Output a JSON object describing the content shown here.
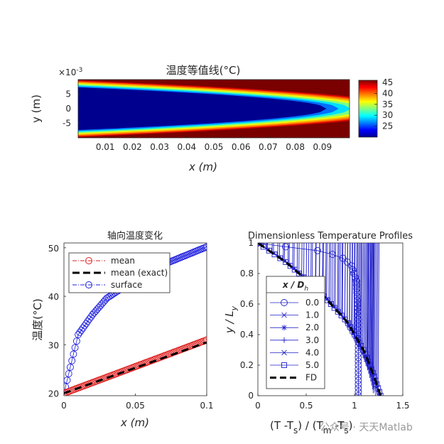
{
  "chart_data": [
    {
      "type": "heatmap",
      "title": "温度等值线(°C)",
      "xlabel": "x (m)",
      "ylabel": "y (m)",
      "y_exponent": "×10",
      "y_exponent_power": "-3",
      "xlim": [
        0,
        0.1
      ],
      "ylim": [
        -10,
        10
      ],
      "x_ticks": [
        "0.01",
        "0.02",
        "0.03",
        "0.04",
        "0.05",
        "0.06",
        "0.07",
        "0.08",
        "0.09"
      ],
      "y_ticks": [
        "5",
        "0",
        "-5"
      ],
      "colorbar": {
        "min": 20,
        "max": 46,
        "ticks": [
          "45",
          "40",
          "35",
          "30",
          "25"
        ]
      },
      "cold_core_tip_x": 0.0915
    },
    {
      "type": "line",
      "title": "轴向温度变化",
      "xlabel": "x (m)",
      "ylabel": "温度(°C)",
      "xlim": [
        0,
        0.1
      ],
      "ylim": [
        19.5,
        51
      ],
      "x_ticks": [
        "0",
        "0.05",
        "0.1"
      ],
      "y_ticks": [
        "50",
        "40",
        "30",
        "20"
      ],
      "legend_location": "top-left",
      "series": [
        {
          "name": "mean",
          "color": "#e02020",
          "style": "dash-dot-circle",
          "x_start": 0,
          "x_end": 0.1,
          "y_start": 20,
          "y_end": 31
        },
        {
          "name": "mean (exact)",
          "color": "#000000",
          "style": "thick-dash",
          "x_start": 0,
          "x_end": 0.1,
          "y_start": 20,
          "y_end": 30.5
        },
        {
          "name": "surface",
          "color": "#2020e0",
          "style": "dash-dot-circle",
          "x": [
            0,
            0.01,
            0.02,
            0.03,
            0.05,
            0.07,
            0.1
          ],
          "y": [
            20,
            32.1,
            36.2,
            39.6,
            43.5,
            46.6,
            50.2
          ]
        }
      ]
    },
    {
      "type": "line",
      "title": "Dimensionless Temperature Profiles",
      "xlabel_parts": [
        "(T -T",
        "s",
        ") / (T",
        "m",
        " -T",
        "s",
        ")"
      ],
      "ylabel": "y / L",
      "ylabel_sub": "y",
      "xlim": [
        0,
        1.5
      ],
      "ylim": [
        0,
        1
      ],
      "x_ticks": [
        "0",
        "0.5",
        "1",
        "1.5"
      ],
      "y_ticks": [
        "1",
        "0.8",
        "0.6",
        "0.4",
        "0.2",
        "0"
      ],
      "legend_location": "left",
      "legend_title": "x / D",
      "legend_title_sub": "h",
      "series": [
        {
          "name": "0.0",
          "marker": "circle",
          "color": "#2020c8",
          "x": [
            0,
            0.2,
            0.55,
            0.75,
            0.88,
            0.97,
            1.02,
            1.04,
            1.04
          ],
          "y": [
            1,
            0.98,
            0.96,
            0.93,
            0.9,
            0.85,
            0.75,
            0.5,
            0
          ]
        },
        {
          "name": "1.0",
          "marker": "x",
          "color": "#2020c8",
          "x": [
            0,
            0.25,
            0.55,
            0.85,
            1.05,
            1.15,
            1.2,
            1.22
          ],
          "y": [
            1,
            0.9,
            0.75,
            0.55,
            0.35,
            0.18,
            0.06,
            0
          ]
        },
        {
          "name": "2.0",
          "marker": "star",
          "color": "#2020c8",
          "x": [
            0,
            0.28,
            0.62,
            0.9,
            1.08,
            1.18,
            1.24,
            1.26
          ],
          "y": [
            1,
            0.88,
            0.7,
            0.5,
            0.3,
            0.14,
            0.04,
            0
          ]
        },
        {
          "name": "3.0",
          "marker": "plus",
          "color": "#2020c8",
          "x": [
            0,
            0.3,
            0.63,
            0.92,
            1.1,
            1.2,
            1.25,
            1.27
          ],
          "y": [
            1,
            0.87,
            0.69,
            0.49,
            0.29,
            0.13,
            0.04,
            0
          ]
        },
        {
          "name": "4.0",
          "marker": "x",
          "color": "#2020c8",
          "x": [
            0,
            0.3,
            0.64,
            0.92,
            1.1,
            1.2,
            1.25,
            1.27
          ],
          "y": [
            1,
            0.87,
            0.69,
            0.48,
            0.29,
            0.13,
            0.04,
            0
          ]
        },
        {
          "name": "5.0",
          "marker": "square",
          "color": "#2020c8",
          "x": [
            0,
            0.3,
            0.64,
            0.93,
            1.11,
            1.2,
            1.25,
            1.27
          ],
          "y": [
            1,
            0.87,
            0.68,
            0.48,
            0.28,
            0.13,
            0.04,
            0
          ]
        },
        {
          "name": "FD",
          "marker": "none",
          "style": "thick-dash",
          "color": "#000000",
          "x": [
            0,
            0.3,
            0.64,
            0.93,
            1.11,
            1.2,
            1.25,
            1.27
          ],
          "y": [
            1,
            0.87,
            0.68,
            0.48,
            0.28,
            0.13,
            0.04,
            0
          ]
        }
      ]
    }
  ],
  "watermark": "公众号 · 天天Matlab"
}
